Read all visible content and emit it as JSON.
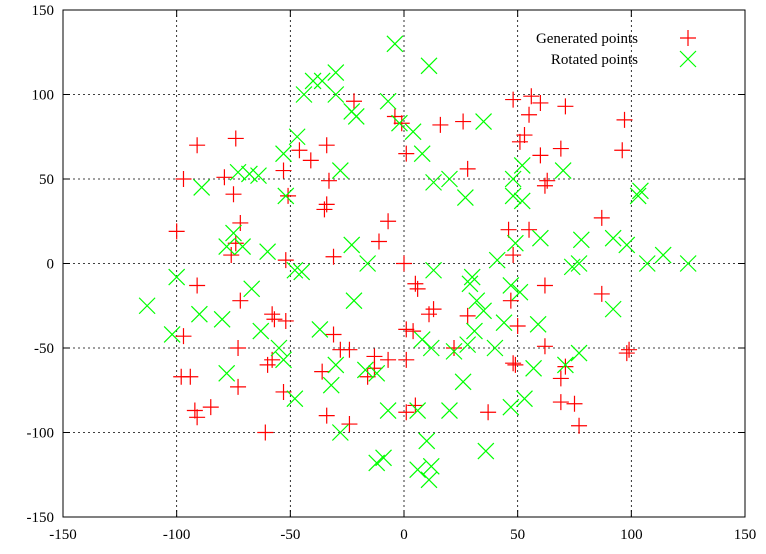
{
  "chart_data": {
    "type": "scatter",
    "title": "",
    "xlabel": "",
    "ylabel": "",
    "xlim": [
      -150,
      150
    ],
    "ylim": [
      -150,
      150
    ],
    "xticks": [
      -150,
      -100,
      -50,
      0,
      50,
      100,
      150
    ],
    "yticks": [
      -150,
      -100,
      -50,
      0,
      50,
      100,
      150
    ],
    "grid": true,
    "legend_position": "top-right",
    "series": [
      {
        "name": "Generated points",
        "marker": "plus",
        "color": "#ff0000",
        "points": [
          [
            -91,
            70
          ],
          [
            -74,
            74
          ],
          [
            -97,
            50
          ],
          [
            -79,
            51
          ],
          [
            -75,
            41
          ],
          [
            -100,
            19
          ],
          [
            -72,
            24
          ],
          [
            -74,
            12
          ],
          [
            -76,
            5
          ],
          [
            -91,
            -13
          ],
          [
            -72,
            -22
          ],
          [
            -97,
            -43
          ],
          [
            -73,
            -50
          ],
          [
            -98,
            -67
          ],
          [
            -94,
            -67
          ],
          [
            -73,
            -73
          ],
          [
            -92,
            -87
          ],
          [
            -91,
            -91
          ],
          [
            -85,
            -85
          ],
          [
            -61,
            -100
          ],
          [
            -46,
            67
          ],
          [
            -34,
            70
          ],
          [
            -41,
            61
          ],
          [
            -53,
            55
          ],
          [
            -51,
            40
          ],
          [
            -34,
            35
          ],
          [
            -35,
            32
          ],
          [
            -33,
            49
          ],
          [
            -52,
            2
          ],
          [
            -31,
            4
          ],
          [
            -58,
            -30
          ],
          [
            -57,
            -33
          ],
          [
            -52,
            -34
          ],
          [
            -31,
            -42
          ],
          [
            -28,
            -51
          ],
          [
            -24,
            -51
          ],
          [
            -60,
            -60
          ],
          [
            -58,
            -57
          ],
          [
            -53,
            -76
          ],
          [
            -36,
            -64
          ],
          [
            -34,
            -90
          ],
          [
            -24,
            -95
          ],
          [
            -22,
            96
          ],
          [
            -4,
            87
          ],
          [
            -1,
            83
          ],
          [
            1,
            65
          ],
          [
            -7,
            25
          ],
          [
            -11,
            13
          ],
          [
            0,
            0
          ],
          [
            5,
            -12
          ],
          [
            6,
            -15
          ],
          [
            13,
            -27
          ],
          [
            11,
            -30
          ],
          [
            1,
            -39
          ],
          [
            4,
            -40
          ],
          [
            -13,
            -55
          ],
          [
            -7,
            -57
          ],
          [
            -13,
            -62
          ],
          [
            1,
            -57
          ],
          [
            -16,
            -67
          ],
          [
            1,
            -88
          ],
          [
            5,
            -84
          ],
          [
            16,
            82
          ],
          [
            26,
            84
          ],
          [
            28,
            56
          ],
          [
            48,
            97
          ],
          [
            56,
            99
          ],
          [
            51,
            72
          ],
          [
            53,
            76
          ],
          [
            60,
            95
          ],
          [
            71,
            93
          ],
          [
            55,
            88
          ],
          [
            69,
            68
          ],
          [
            60,
            64
          ],
          [
            63,
            49
          ],
          [
            62,
            46
          ],
          [
            46,
            20
          ],
          [
            55,
            20
          ],
          [
            48,
            5
          ],
          [
            62,
            -13
          ],
          [
            28,
            -31
          ],
          [
            47,
            -22
          ],
          [
            50,
            -37
          ],
          [
            22,
            -50
          ],
          [
            48,
            -59
          ],
          [
            62,
            -49
          ],
          [
            37,
            -88
          ],
          [
            49,
            -60
          ],
          [
            71,
            -61
          ],
          [
            69,
            -68
          ],
          [
            69,
            -82
          ],
          [
            75,
            -83
          ],
          [
            77,
            -96
          ],
          [
            87,
            27
          ],
          [
            97,
            85
          ],
          [
            96,
            67
          ],
          [
            98,
            -53
          ],
          [
            99,
            -51
          ],
          [
            87,
            -18
          ]
        ]
      },
      {
        "name": "Rotated points",
        "marker": "cross",
        "color": "#00ff00",
        "points": [
          [
            -4,
            130
          ],
          [
            11,
            117
          ],
          [
            -40,
            108
          ],
          [
            -36,
            108
          ],
          [
            -30,
            113
          ],
          [
            -44,
            100
          ],
          [
            -30,
            100
          ],
          [
            -23,
            90
          ],
          [
            -21,
            87
          ],
          [
            -7,
            96
          ],
          [
            -2,
            83
          ],
          [
            4,
            78
          ],
          [
            8,
            65
          ],
          [
            -47,
            75
          ],
          [
            -53,
            65
          ],
          [
            -73,
            54
          ],
          [
            -68,
            53
          ],
          [
            -64,
            52
          ],
          [
            -89,
            45
          ],
          [
            -52,
            40
          ],
          [
            -28,
            55
          ],
          [
            -78,
            10
          ],
          [
            -71,
            10
          ],
          [
            -75,
            18
          ],
          [
            -60,
            7
          ],
          [
            -48,
            -4
          ],
          [
            -45,
            -5
          ],
          [
            -23,
            11
          ],
          [
            -16,
            0
          ],
          [
            13,
            -4
          ],
          [
            -100,
            -8
          ],
          [
            -113,
            -25
          ],
          [
            -102,
            -42
          ],
          [
            -90,
            -30
          ],
          [
            -80,
            -33
          ],
          [
            -67,
            -15
          ],
          [
            -63,
            -40
          ],
          [
            -55,
            -50
          ],
          [
            -53,
            -57
          ],
          [
            -78,
            -65
          ],
          [
            -48,
            -80
          ],
          [
            -37,
            -39
          ],
          [
            -30,
            -60
          ],
          [
            -28,
            -100
          ],
          [
            -32,
            -72
          ],
          [
            -22,
            -22
          ],
          [
            -17,
            -63
          ],
          [
            -12,
            -65
          ],
          [
            -12,
            -118
          ],
          [
            -9,
            -115
          ],
          [
            -7,
            -87
          ],
          [
            6,
            -87
          ],
          [
            10,
            -105
          ],
          [
            6,
            -122
          ],
          [
            12,
            -120
          ],
          [
            11,
            -128
          ],
          [
            12,
            -50
          ],
          [
            20,
            -87
          ],
          [
            22,
            -52
          ],
          [
            26,
            -70
          ],
          [
            36,
            -111
          ],
          [
            31,
            -40
          ],
          [
            32,
            -22
          ],
          [
            35,
            -28
          ],
          [
            40,
            -50
          ],
          [
            44,
            -35
          ],
          [
            41,
            2
          ],
          [
            47,
            -85
          ],
          [
            53,
            -80
          ],
          [
            51,
            -17
          ],
          [
            57,
            -62
          ],
          [
            47,
            -13
          ],
          [
            52,
            58
          ],
          [
            48,
            50
          ],
          [
            48,
            40
          ],
          [
            49,
            12
          ],
          [
            60,
            15
          ],
          [
            52,
            37
          ],
          [
            70,
            55
          ],
          [
            59,
            -36
          ],
          [
            71,
            -60
          ],
          [
            77,
            -53
          ],
          [
            78,
            14
          ],
          [
            74,
            -2
          ],
          [
            77,
            0
          ],
          [
            30,
            -8
          ],
          [
            29,
            -12
          ],
          [
            28,
            -48
          ],
          [
            13,
            48
          ],
          [
            20,
            50
          ],
          [
            27,
            39
          ],
          [
            35,
            84
          ],
          [
            92,
            15
          ],
          [
            98,
            11
          ],
          [
            92,
            -27
          ],
          [
            103,
            40
          ],
          [
            104,
            43
          ],
          [
            107,
            0
          ],
          [
            114,
            5
          ],
          [
            125,
            0
          ],
          [
            8,
            -45
          ]
        ]
      }
    ]
  }
}
